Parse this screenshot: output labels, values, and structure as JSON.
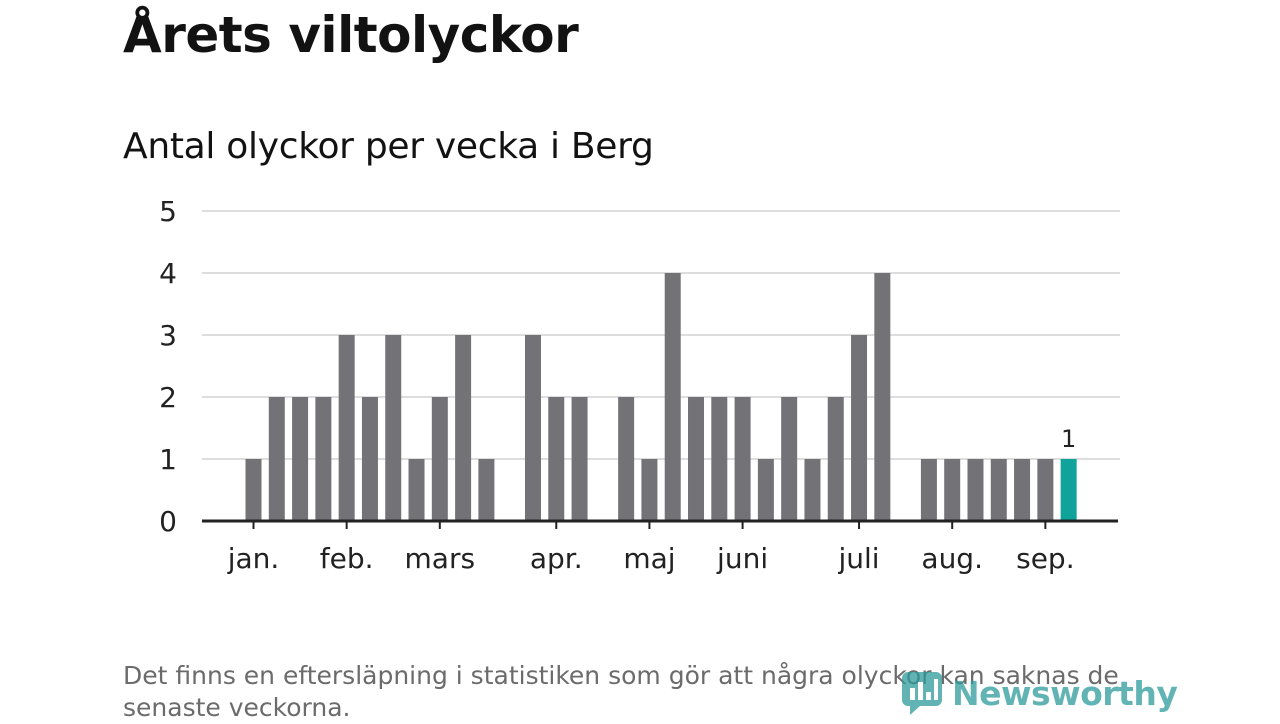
{
  "title": "Årets viltolyckor",
  "subtitle": "Antal olyckor per vecka i Berg",
  "footnote": "Det finns en eftersläpning i statistiken som gör att några olyckor kan saknas de senaste veckorna.",
  "logo": {
    "text": "Newsworthy",
    "icon": "newsworthy-logo-icon"
  },
  "colors": {
    "bar": "#737277",
    "highlight": "#0fa39b",
    "grid": "#dddddd",
    "axis": "#222222"
  },
  "chart_data": {
    "type": "bar",
    "ylim": [
      0,
      5
    ],
    "yticks": [
      0,
      1,
      2,
      3,
      4,
      5
    ],
    "grid": true,
    "month_labels": [
      {
        "label": "jan.",
        "week": 1
      },
      {
        "label": "feb.",
        "week": 5
      },
      {
        "label": "mars",
        "week": 9
      },
      {
        "label": "apr.",
        "week": 14
      },
      {
        "label": "maj",
        "week": 18
      },
      {
        "label": "juni",
        "week": 22
      },
      {
        "label": "juli",
        "week": 27
      },
      {
        "label": "aug.",
        "week": 31
      },
      {
        "label": "sep.",
        "week": 35
      }
    ],
    "weeks": [
      1,
      2,
      3,
      4,
      5,
      6,
      7,
      8,
      9,
      10,
      11,
      12,
      13,
      14,
      15,
      16,
      17,
      18,
      19,
      20,
      21,
      22,
      23,
      24,
      25,
      26,
      27,
      28,
      29,
      30,
      31,
      32,
      33,
      34,
      35,
      36
    ],
    "values": [
      1,
      2,
      2,
      2,
      3,
      2,
      3,
      1,
      2,
      3,
      1,
      0,
      3,
      2,
      2,
      0,
      2,
      1,
      4,
      2,
      2,
      2,
      1,
      2,
      1,
      2,
      3,
      4,
      0,
      1,
      1,
      1,
      1,
      1,
      1,
      1
    ],
    "highlight_index": 35,
    "highlight_label": "1"
  }
}
